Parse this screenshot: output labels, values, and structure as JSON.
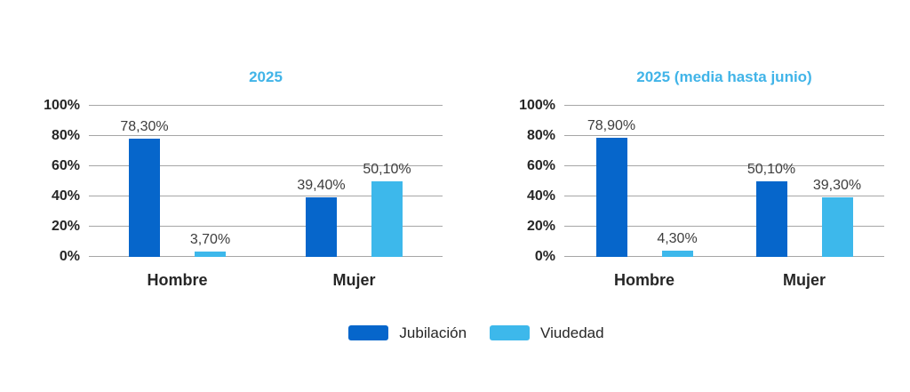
{
  "page": {
    "background": "#ffffff"
  },
  "colors": {
    "series_jubilacion": "#0666cb",
    "series_viudedad": "#3db8eb",
    "chart_title": "#41b4e8",
    "gridline": "#a6a6a6",
    "axis_text": "#262626",
    "value_text": "#3d3d3d"
  },
  "legend": {
    "items": [
      {
        "label": "Jubilación",
        "color": "#0666cb"
      },
      {
        "label": "Viudedad",
        "color": "#3db8eb"
      }
    ]
  },
  "chart_data": [
    {
      "type": "bar",
      "title": "2025",
      "categories": [
        "Hombre",
        "Mujer"
      ],
      "series": [
        {
          "name": "Jubilación",
          "color": "#0666cb",
          "values": [
            78.3,
            39.4
          ],
          "labels": [
            "78,30%",
            "39,40%"
          ]
        },
        {
          "name": "Viudedad",
          "color": "#3db8eb",
          "values": [
            3.7,
            50.1
          ],
          "labels": [
            "3,70%",
            "50,10%"
          ]
        }
      ],
      "xlabel": "",
      "ylabel": "",
      "ylim": [
        0,
        100
      ],
      "yticks": [
        0,
        20,
        40,
        60,
        80,
        100
      ],
      "ytick_labels": [
        "0%",
        "20%",
        "40%",
        "60%",
        "80%",
        "100%"
      ],
      "grid": true,
      "legend_position": "bottom"
    },
    {
      "type": "bar",
      "title": "2025 (media hasta junio)",
      "categories": [
        "Hombre",
        "Mujer"
      ],
      "series": [
        {
          "name": "Jubilación",
          "color": "#0666cb",
          "values": [
            78.9,
            50.1
          ],
          "labels": [
            "78,90%",
            "50,10%"
          ]
        },
        {
          "name": "Viudedad",
          "color": "#3db8eb",
          "values": [
            4.3,
            39.3
          ],
          "labels": [
            "4,30%",
            "39,30%"
          ]
        }
      ],
      "xlabel": "",
      "ylabel": "",
      "ylim": [
        0,
        100
      ],
      "yticks": [
        0,
        20,
        40,
        60,
        80,
        100
      ],
      "ytick_labels": [
        "0%",
        "20%",
        "40%",
        "60%",
        "80%",
        "100%"
      ],
      "grid": true,
      "legend_position": "bottom"
    }
  ]
}
